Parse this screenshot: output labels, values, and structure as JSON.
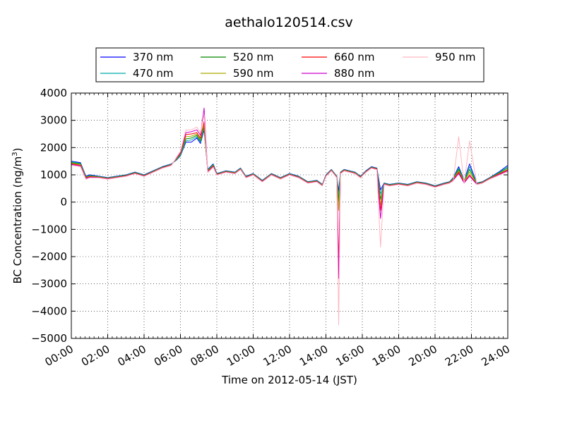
{
  "chart_data": {
    "type": "line",
    "title": "aethalo120514.csv",
    "xlabel": "Time on 2012-05-14 (JST)",
    "ylabel": "BC Concentration (ng/m",
    "ylabel_sup": "3",
    "ylabel_end": ")",
    "xlim": [
      "2012-05-14 00:00",
      "2012-05-15 00:00"
    ],
    "ylim": [
      -5000,
      4000
    ],
    "x_ticks": [
      "00:00",
      "02:00",
      "04:00",
      "06:00",
      "08:00",
      "10:00",
      "12:00",
      "14:00",
      "16:00",
      "18:00",
      "20:00",
      "22:00",
      "24:00"
    ],
    "y_ticks": [
      "4000",
      "3000",
      "2000",
      "1000",
      "0",
      "−1000",
      "−2000",
      "−3000",
      "−4000",
      "−5000"
    ],
    "grid": true,
    "legend_placement": "top-center",
    "x_unit": "hour",
    "x": [
      0,
      0.5,
      0.8,
      1.0,
      1.5,
      2.0,
      2.5,
      3.0,
      3.5,
      4.0,
      4.5,
      5.0,
      5.5,
      5.8,
      6.0,
      6.3,
      6.6,
      6.9,
      7.1,
      7.3,
      7.5,
      7.8,
      8.0,
      8.5,
      9.0,
      9.3,
      9.6,
      10.0,
      10.5,
      11.0,
      11.5,
      12.0,
      12.5,
      13.0,
      13.5,
      13.8,
      14.0,
      14.3,
      14.6,
      14.7,
      14.8,
      15.0,
      15.3,
      15.6,
      15.9,
      16.2,
      16.5,
      16.8,
      17.0,
      17.2,
      17.5,
      18.0,
      18.5,
      19.0,
      19.5,
      20.0,
      20.5,
      20.8,
      21.0,
      21.3,
      21.6,
      21.9,
      22.3,
      22.6,
      23.0,
      23.5,
      24.0
    ],
    "series": [
      {
        "name": "370 nm",
        "color": "#0000ff",
        "values": [
          1500,
          1450,
          950,
          1000,
          950,
          900,
          950,
          1000,
          1100,
          1000,
          1150,
          1300,
          1400,
          1550,
          1700,
          2200,
          2200,
          2350,
          2150,
          2650,
          1200,
          1400,
          1050,
          1150,
          1100,
          1250,
          950,
          1050,
          800,
          1050,
          900,
          1050,
          950,
          750,
          800,
          650,
          1000,
          1200,
          950,
          400,
          1100,
          1200,
          1150,
          1100,
          950,
          1150,
          1300,
          1250,
          450,
          700,
          650,
          700,
          650,
          750,
          700,
          600,
          700,
          750,
          900,
          1300,
          800,
          1400,
          700,
          750,
          900,
          1100,
          1350
        ]
      },
      {
        "name": "470 nm",
        "color": "#00aaaa",
        "values": [
          1480,
          1420,
          930,
          980,
          940,
          890,
          940,
          990,
          1090,
          990,
          1140,
          1290,
          1390,
          1560,
          1720,
          2250,
          2280,
          2400,
          2200,
          2700,
          1180,
          1380,
          1040,
          1140,
          1090,
          1240,
          940,
          1040,
          790,
          1040,
          890,
          1040,
          940,
          740,
          790,
          640,
          990,
          1190,
          940,
          200,
          1090,
          1190,
          1140,
          1090,
          940,
          1140,
          1290,
          1240,
          300,
          690,
          640,
          690,
          640,
          740,
          690,
          590,
          690,
          740,
          880,
          1250,
          780,
          1300,
          690,
          740,
          890,
          1080,
          1300
        ]
      },
      {
        "name": "520 nm",
        "color": "#008800",
        "values": [
          1450,
          1400,
          910,
          960,
          930,
          880,
          930,
          980,
          1080,
          980,
          1130,
          1280,
          1380,
          1580,
          1750,
          2320,
          2350,
          2450,
          2250,
          2750,
          1160,
          1360,
          1030,
          1130,
          1080,
          1230,
          930,
          1030,
          780,
          1030,
          880,
          1030,
          930,
          730,
          780,
          630,
          980,
          1180,
          930,
          0,
          1080,
          1180,
          1130,
          1080,
          930,
          1130,
          1280,
          1230,
          100,
          680,
          630,
          680,
          630,
          730,
          680,
          580,
          680,
          730,
          860,
          1200,
          760,
          1200,
          680,
          730,
          880,
          1060,
          1250
        ]
      },
      {
        "name": "590 nm",
        "color": "#aaaa00",
        "values": [
          1420,
          1380,
          900,
          950,
          920,
          870,
          920,
          970,
          1070,
          970,
          1120,
          1270,
          1370,
          1600,
          1780,
          2400,
          2420,
          2500,
          2300,
          2850,
          1140,
          1340,
          1020,
          1120,
          1070,
          1220,
          920,
          1020,
          770,
          1020,
          870,
          1020,
          920,
          720,
          770,
          620,
          970,
          1170,
          920,
          -300,
          1070,
          1170,
          1120,
          1070,
          920,
          1120,
          1270,
          1220,
          -100,
          670,
          620,
          670,
          620,
          720,
          670,
          570,
          670,
          720,
          840,
          1150,
          740,
          1100,
          670,
          720,
          870,
          1040,
          1200
        ]
      },
      {
        "name": "660 nm",
        "color": "#ff0000",
        "values": [
          1400,
          1350,
          880,
          930,
          910,
          860,
          910,
          960,
          1060,
          960,
          1110,
          1260,
          1360,
          1620,
          1800,
          2480,
          2500,
          2550,
          2350,
          2950,
          1120,
          1320,
          1010,
          1110,
          1060,
          1210,
          910,
          1010,
          760,
          1010,
          860,
          1010,
          910,
          710,
          760,
          610,
          960,
          1160,
          910,
          -2300,
          1060,
          1160,
          1110,
          1060,
          910,
          1110,
          1260,
          1210,
          -300,
          660,
          610,
          660,
          610,
          710,
          660,
          560,
          660,
          710,
          820,
          1100,
          720,
          1000,
          660,
          710,
          860,
          1020,
          1180
        ]
      },
      {
        "name": "880 nm",
        "color": "#cc00cc",
        "values": [
          1380,
          1320,
          860,
          910,
          900,
          850,
          900,
          950,
          1050,
          950,
          1100,
          1250,
          1350,
          1640,
          1830,
          2550,
          2580,
          2650,
          2450,
          3450,
          1100,
          1300,
          1000,
          1100,
          1050,
          1200,
          900,
          1000,
          750,
          1000,
          850,
          1000,
          900,
          700,
          750,
          600,
          950,
          1150,
          900,
          -2800,
          1050,
          1150,
          1100,
          1050,
          900,
          1100,
          1250,
          1200,
          -600,
          650,
          600,
          650,
          600,
          700,
          650,
          550,
          650,
          700,
          800,
          1050,
          700,
          950,
          650,
          700,
          850,
          1000,
          1150
        ]
      },
      {
        "name": "950 nm",
        "color": "#ffb6c1",
        "values": [
          1350,
          1300,
          840,
          890,
          890,
          840,
          890,
          940,
          1040,
          940,
          1090,
          1240,
          1340,
          1660,
          1860,
          2650,
          2650,
          2750,
          2550,
          3200,
          1080,
          1280,
          990,
          1090,
          1040,
          1190,
          890,
          990,
          740,
          990,
          840,
          990,
          890,
          690,
          740,
          590,
          940,
          1140,
          890,
          -4500,
          1040,
          1140,
          1090,
          1040,
          890,
          1090,
          1240,
          1190,
          -1650,
          640,
          590,
          640,
          590,
          690,
          640,
          540,
          640,
          690,
          780,
          2400,
          680,
          2250,
          640,
          690,
          840,
          980,
          1120
        ]
      }
    ]
  }
}
